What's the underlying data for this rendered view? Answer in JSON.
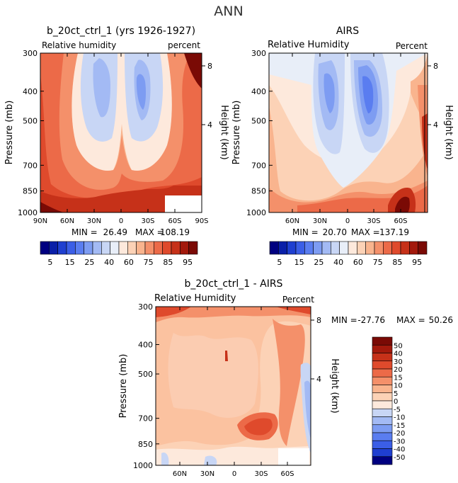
{
  "page_title": "ANN",
  "chart_data": [
    {
      "type": "heatmap",
      "title": "b_20ct_ctrl_1 (yrs 1926-1927)",
      "variable": "Relative humidity",
      "units": "percent",
      "ylabel": "Pressure (mb)",
      "ylabel_right": "Height (km)",
      "y_scale": "log",
      "ylim": [
        1000,
        300
      ],
      "y_ticks": [
        "300",
        "400",
        "500",
        "700",
        "850",
        "1000"
      ],
      "y2_ticks": [
        "8",
        "4"
      ],
      "xlim": [
        90,
        -90
      ],
      "x_ticks": [
        "90N",
        "60N",
        "30N",
        "0",
        "30S",
        "60S",
        "90S"
      ],
      "min_label": "MIN =",
      "min_value": "26.49",
      "max_label": "MAX =",
      "max_value": "108.19",
      "colorbar": {
        "orientation": "horizontal",
        "labels": [
          "5",
          "15",
          "25",
          "40",
          "60",
          "75",
          "85",
          "95"
        ],
        "colors": [
          "#000080",
          "#0a1fa8",
          "#1f3fd0",
          "#3b5ee6",
          "#5a7df0",
          "#7d9cf2",
          "#a3baf4",
          "#c8d6f5",
          "#e8eef8",
          "#fde9dc",
          "#fcd2b6",
          "#f9b48e",
          "#f4906a",
          "#ec6a48",
          "#df4a2c",
          "#c63119",
          "#a3190c",
          "#7a0a05"
        ]
      }
    },
    {
      "type": "heatmap",
      "title": "AIRS",
      "variable": "Relative Humidity",
      "units": "Percent",
      "ylabel": "Pressure (mb)",
      "ylabel_right": "Height (km)",
      "y_scale": "log",
      "ylim": [
        1000,
        300
      ],
      "y_ticks": [
        "300",
        "400",
        "500",
        "700",
        "850",
        "1000"
      ],
      "y2_ticks": [
        "8",
        "4"
      ],
      "x_ticks": [
        "60N",
        "30N",
        "0",
        "30S",
        "60S"
      ],
      "min_label": "MIN =",
      "min_value": "20.70",
      "max_label": "MAX =",
      "max_value": "137.19",
      "colorbar": {
        "orientation": "horizontal",
        "labels": [
          "5",
          "15",
          "25",
          "40",
          "60",
          "75",
          "85",
          "95"
        ],
        "colors": [
          "#000080",
          "#0a1fa8",
          "#1f3fd0",
          "#3b5ee6",
          "#5a7df0",
          "#7d9cf2",
          "#a3baf4",
          "#c8d6f5",
          "#e8eef8",
          "#fde9dc",
          "#fcd2b6",
          "#f9b48e",
          "#f4906a",
          "#ec6a48",
          "#df4a2c",
          "#c63119",
          "#a3190c",
          "#7a0a05"
        ]
      }
    },
    {
      "type": "heatmap",
      "title": "b_20ct_ctrl_1 - AIRS",
      "variable": "Relative Humidity",
      "units": "Percent",
      "ylabel": "Pressure (mb)",
      "ylabel_right": "Height (km)",
      "y_scale": "log",
      "ylim": [
        1000,
        300
      ],
      "y_ticks": [
        "300",
        "400",
        "500",
        "700",
        "850",
        "1000"
      ],
      "y2_ticks": [
        "8",
        "4"
      ],
      "x_ticks": [
        "60N",
        "30N",
        "0",
        "30S",
        "60S"
      ],
      "min_label": "MIN =",
      "min_value": "-27.76",
      "max_label": "MAX =",
      "max_value": "50.26",
      "colorbar": {
        "orientation": "vertical",
        "labels": [
          "50",
          "40",
          "30",
          "20",
          "15",
          "10",
          "5",
          "0",
          "-5",
          "-10",
          "-15",
          "-20",
          "-30",
          "-40",
          "-50"
        ],
        "colors": [
          "#7a0a05",
          "#a3190c",
          "#c63119",
          "#df4a2c",
          "#ec6a48",
          "#f4906a",
          "#f9b48e",
          "#fcd2b6",
          "#fde9dc",
          "#c8d6f5",
          "#a3baf4",
          "#7d9cf2",
          "#5a7df0",
          "#3b5ee6",
          "#1f3fd0",
          "#000080"
        ]
      }
    }
  ]
}
